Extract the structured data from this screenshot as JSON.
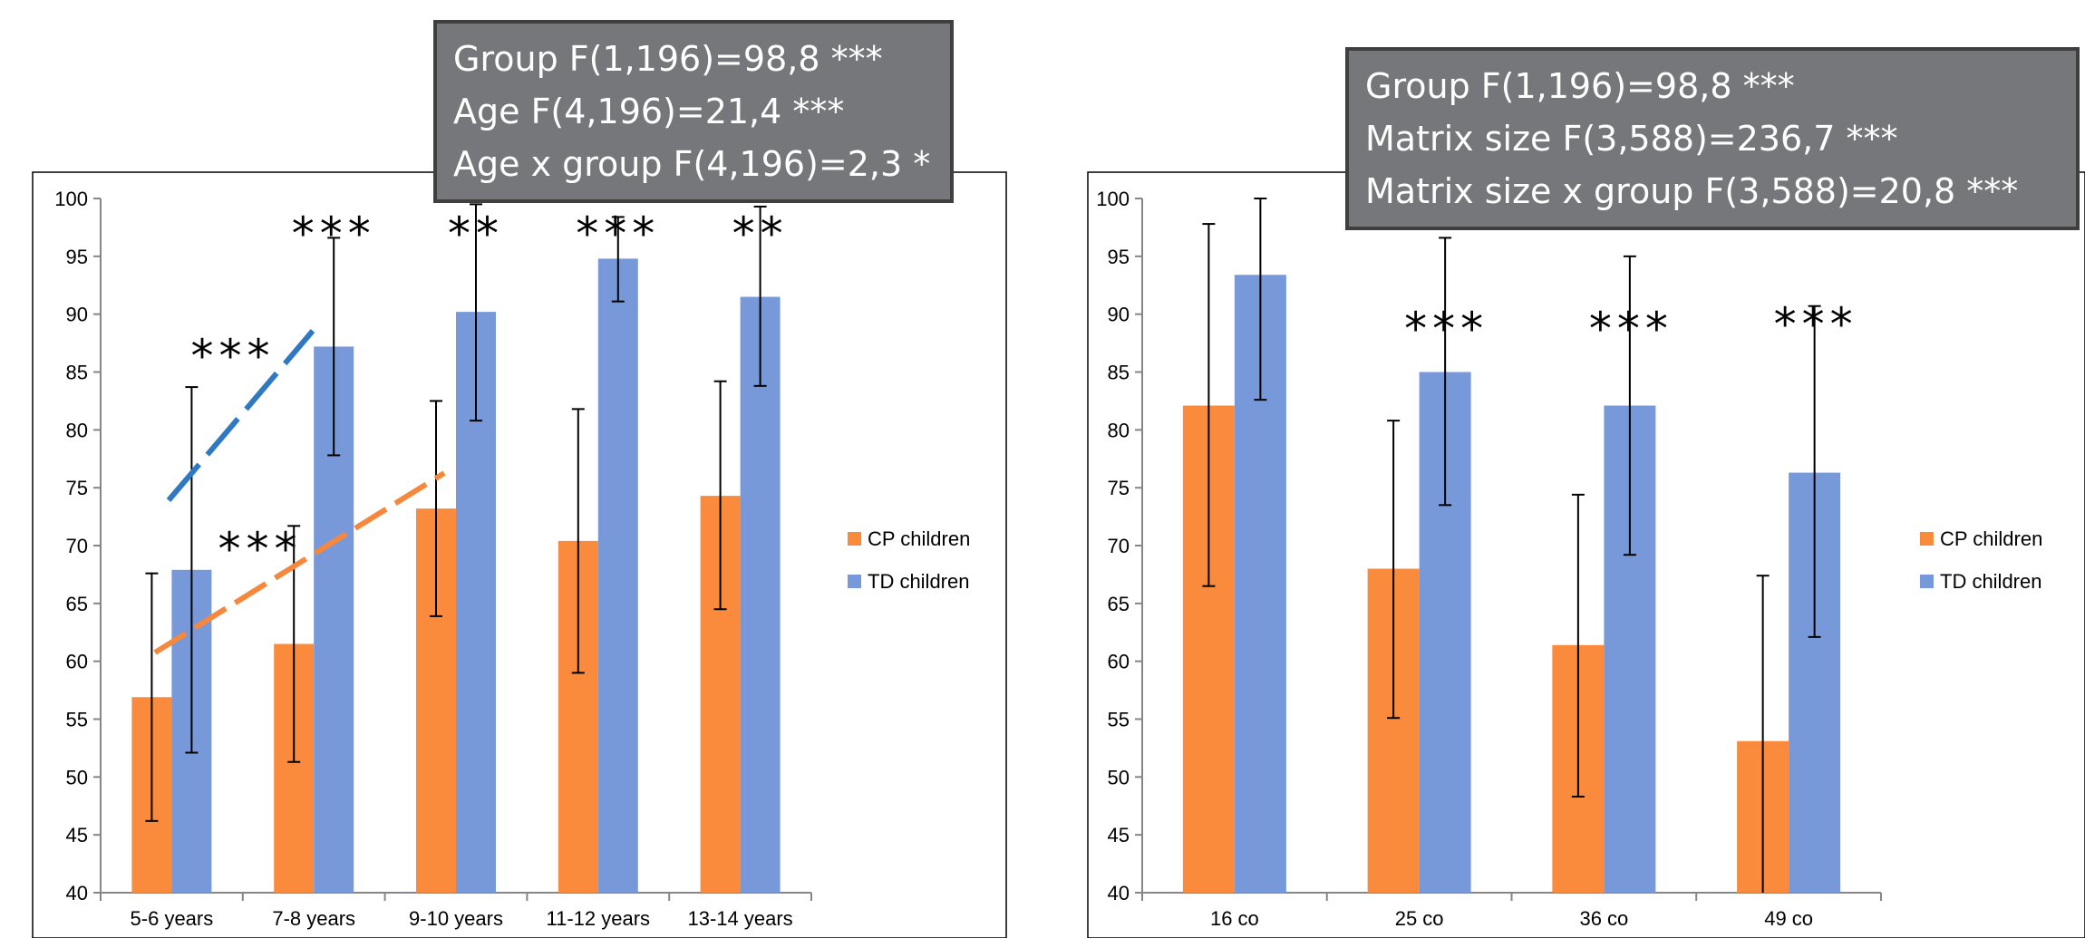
{
  "colors": {
    "cp": "#fa8a3c",
    "td": "#7899d9",
    "blue_trend": "#2f78c2",
    "orange_trend": "#f5883c",
    "box_bg": "#76777a"
  },
  "chart_data": [
    {
      "type": "bar",
      "categories": [
        "5-6 years",
        "7-8 years",
        "9-10 years",
        "11-12 years",
        "13-14 years"
      ],
      "series": [
        {
          "name": "CP children",
          "values": [
            56.9,
            61.5,
            73.2,
            70.4,
            74.3
          ],
          "error_low": [
            46.2,
            51.3,
            63.9,
            59.0,
            64.5
          ],
          "error_high": [
            67.6,
            71.7,
            82.5,
            81.8,
            84.2
          ]
        },
        {
          "name": "TD children",
          "values": [
            67.9,
            87.2,
            90.2,
            94.8,
            91.5
          ],
          "error_low": [
            52.1,
            77.8,
            80.8,
            91.1,
            83.8
          ],
          "error_high": [
            83.7,
            96.6,
            99.5,
            98.4,
            99.3
          ]
        }
      ],
      "ylim": [
        40,
        100
      ],
      "yticks": [
        "40",
        "45",
        "50",
        "55",
        "60",
        "65",
        "70",
        "75",
        "80",
        "85",
        "90",
        "95",
        "100"
      ],
      "legend_position": "right",
      "significance": [
        {
          "label": "***",
          "category_index": 0
        },
        {
          "label": "***",
          "category_index": 1
        },
        {
          "label": "**",
          "category_index": 2
        },
        {
          "label": "***",
          "category_index": 3
        },
        {
          "label": "**",
          "category_index": 4
        }
      ],
      "trend_labels": [
        "***",
        "***"
      ],
      "annotation": [
        "Group F(1,196)=98,8 ***",
        "Age F(4,196)=21,4 ***",
        "Age x group F(4,196)=2,3 *"
      ]
    },
    {
      "type": "bar",
      "categories": [
        "16 co",
        "25 co",
        "36 co",
        "49 co"
      ],
      "series": [
        {
          "name": "CP children",
          "values": [
            82.1,
            68.0,
            61.4,
            53.1
          ],
          "error_low": [
            66.5,
            55.1,
            48.3,
            40.0
          ],
          "error_high": [
            97.8,
            80.8,
            74.4,
            67.4
          ]
        },
        {
          "name": "TD children",
          "values": [
            93.4,
            85.0,
            82.1,
            76.3
          ],
          "error_low": [
            82.6,
            73.5,
            69.2,
            62.1
          ],
          "error_high": [
            100.0,
            96.6,
            95.0,
            90.7
          ]
        }
      ],
      "ylim": [
        40,
        100
      ],
      "yticks": [
        "40",
        "45",
        "50",
        "55",
        "60",
        "65",
        "70",
        "75",
        "80",
        "85",
        "90",
        "95",
        "100"
      ],
      "legend_position": "right",
      "significance": [
        {
          "label": "***",
          "category_index": 1
        },
        {
          "label": "***",
          "category_index": 2
        },
        {
          "label": "***",
          "category_index": 3
        }
      ],
      "annotation": [
        "Group F(1,196)=98,8 ***",
        "Matrix size F(3,588)=236,7 ***",
        "Matrix size x group F(3,588)=20,8 ***"
      ]
    }
  ]
}
